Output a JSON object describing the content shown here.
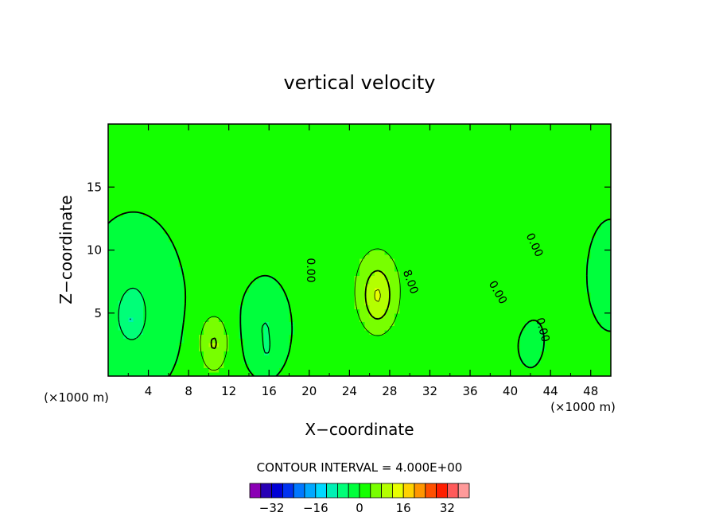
{
  "chart_data": {
    "type": "contour",
    "title": "vertical velocity",
    "xlabel": "X−coordinate",
    "ylabel": "Z−coordinate",
    "x_unit": "(×1000 m)",
    "x_unit_right": "(×1000 m)",
    "xlim": [
      0,
      50
    ],
    "ylim": [
      0,
      20
    ],
    "xticks": [
      4,
      8,
      12,
      16,
      20,
      24,
      28,
      32,
      36,
      40,
      44,
      48
    ],
    "yticks": [
      5,
      10,
      15
    ],
    "contour_interval_text": "CONTOUR INTERVAL = 4.000E+00",
    "contour_labels": [
      "0.00",
      "8.00",
      "0.00",
      "0.00",
      "0.00"
    ],
    "colorbar": {
      "levels": [
        -36,
        -32,
        -28,
        -24,
        -20,
        -16,
        -12,
        -8,
        -4,
        0,
        4,
        8,
        12,
        16,
        20,
        24,
        28,
        32,
        36
      ],
      "tick_values": [
        -32,
        -16,
        0,
        16,
        32
      ],
      "tick_labels": [
        "−32",
        "−16",
        "0",
        "16",
        "32"
      ],
      "colors": [
        "#8b00b5",
        "#2800b5",
        "#0000d6",
        "#0032f0",
        "#0078ff",
        "#00a8ff",
        "#00d8ff",
        "#00f0b4",
        "#00ff78",
        "#00ff3c",
        "#14ff00",
        "#78ff00",
        "#b4ff00",
        "#e8ff00",
        "#ffd200",
        "#ff9600",
        "#ff5000",
        "#ff1e00",
        "#ff5a5a",
        "#ff9a9a"
      ]
    },
    "features": [
      {
        "kind": "updraft",
        "center": [
          26.8,
          6.3
        ],
        "peak": 12
      },
      {
        "kind": "updraft",
        "center": [
          10.5,
          2.5
        ],
        "peak": 8
      },
      {
        "kind": "downdraft",
        "center": [
          2.5,
          4.5
        ],
        "peak": -8
      },
      {
        "kind": "downdraft",
        "center": [
          15.8,
          2.0
        ],
        "peak": -4
      }
    ]
  }
}
